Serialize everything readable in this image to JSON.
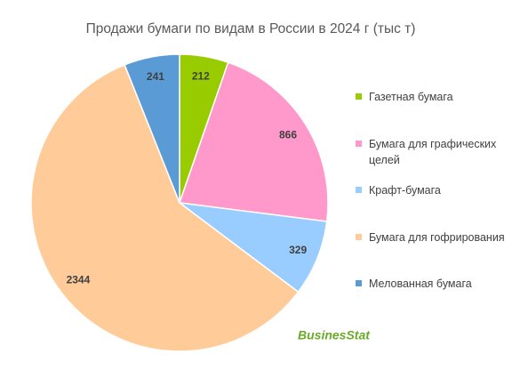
{
  "chart_data": {
    "type": "pie",
    "title": "Продажи бумаги по видам в России в 2024 г (тыс т)",
    "categories": [
      "Газетная бумага",
      "Бумага для графических целей",
      "Крафт-бумага",
      "Бумага для гофрирования",
      "Мелованная бумага"
    ],
    "values": [
      212,
      866,
      329,
      2344,
      241
    ],
    "colors": [
      "#99cc00",
      "#ff99cc",
      "#99ccff",
      "#ffcc99",
      "#5b9bd5"
    ],
    "logo": "BusinesStat"
  }
}
